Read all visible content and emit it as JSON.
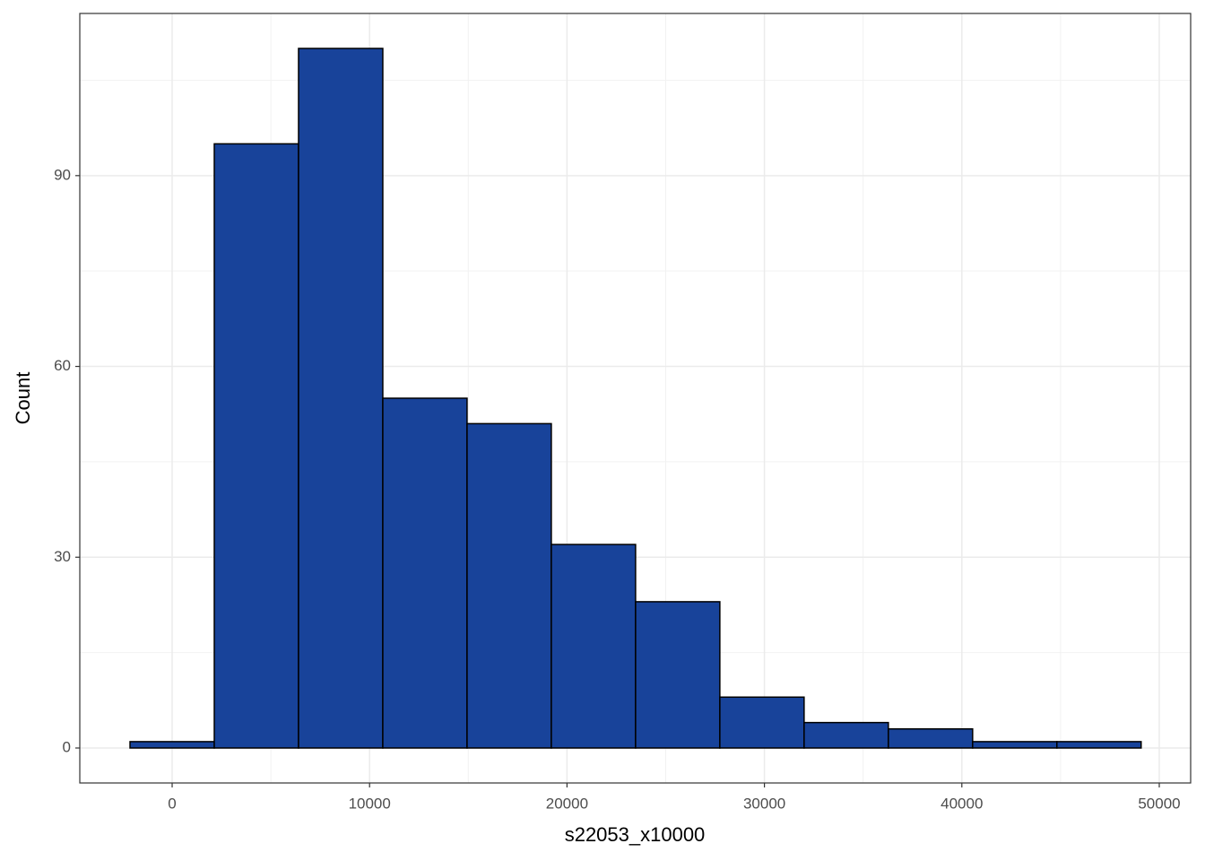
{
  "chart_data": {
    "type": "histogram",
    "xlabel": "s22053_x10000",
    "ylabel": "Count",
    "bins": [
      -2134,
      2134,
      6402,
      10670,
      14938,
      19206,
      23474,
      27742,
      32010,
      36278,
      40546,
      44814,
      49082
    ],
    "counts": [
      1,
      95,
      110,
      55,
      51,
      32,
      23,
      8,
      4,
      3,
      1,
      1
    ],
    "color": "#18439a",
    "edgecolor": "#000000",
    "xlim": [
      -4678,
      51590
    ],
    "ylim": [
      -5.5,
      115.5
    ],
    "xticks": [
      0,
      10000,
      20000,
      30000,
      40000,
      50000
    ],
    "yticks": [
      0,
      30,
      60,
      90
    ],
    "xminorticks": [
      5000,
      15000,
      25000,
      35000,
      45000
    ],
    "yminorticks": [
      15,
      45,
      75,
      105
    ],
    "grid": true
  }
}
